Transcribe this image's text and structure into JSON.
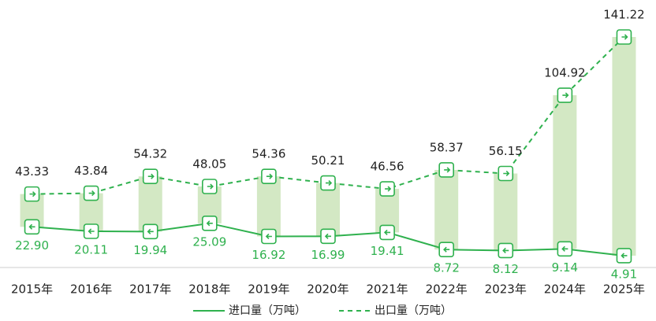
{
  "chart_data": {
    "type": "line",
    "categories": [
      "2015年",
      "2016年",
      "2017年",
      "2018年",
      "2019年",
      "2020年",
      "2021年",
      "2022年",
      "2023年",
      "2024年",
      "2025年"
    ],
    "series": [
      {
        "name": "进口量（万吨）",
        "color": "#2fb14e",
        "dash": false,
        "values": [
          22.9,
          20.11,
          19.94,
          25.09,
          16.92,
          16.99,
          19.41,
          8.72,
          8.12,
          9.14,
          4.91
        ],
        "value_labels": [
          "22.90",
          "20.11",
          "19.94",
          "25.09",
          "16.92",
          "16.99",
          "19.41",
          "8.72",
          "8.12",
          "9.14",
          "4.91"
        ]
      },
      {
        "name": "出口量（万吨）",
        "color": "#2fb14e",
        "dash": true,
        "values": [
          43.33,
          43.84,
          54.32,
          48.05,
          54.36,
          50.21,
          46.56,
          58.37,
          56.15,
          104.92,
          141.22
        ],
        "value_labels": [
          "43.33",
          "43.84",
          "54.32",
          "48.05",
          "54.36",
          "50.21",
          "46.56",
          "58.37",
          "56.15",
          "104.92",
          "141.22"
        ]
      }
    ],
    "band_color": "#d3e8c4"
  }
}
